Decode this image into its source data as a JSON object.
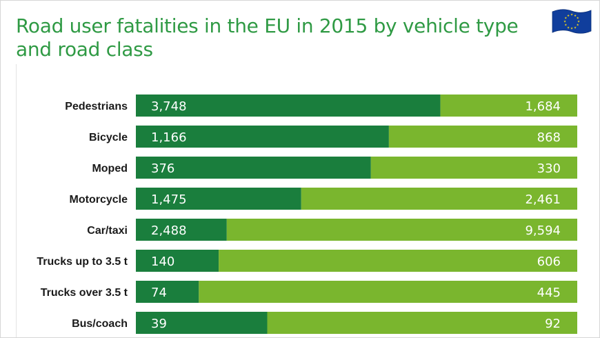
{
  "title": "Road user fatalities in the EU in 2015 by vehicle type and road class",
  "flag": {
    "name": "European Union flag",
    "background": "#103e9c",
    "stars": "#f2d51a"
  },
  "colors": {
    "title": "#2f9a44",
    "dark_green": "#1a7e3d",
    "light_green": "#7ab62e"
  },
  "chart_data": {
    "type": "bar",
    "orientation": "horizontal",
    "stacked": true,
    "normalized": true,
    "title": "Road user fatalities in the EU in 2015 by vehicle type and road class",
    "categories": [
      "Pedestrians",
      "Bicycle",
      "Moped",
      "Motorcycle",
      "Car/taxi",
      "Trucks up to 3.5 t",
      "Trucks over 3.5 t",
      "Bus/coach"
    ],
    "series": [
      {
        "name": "dark",
        "color": "#1a7e3d",
        "values": [
          3748,
          1166,
          376,
          1475,
          2488,
          140,
          74,
          39
        ],
        "labels": [
          "3,748",
          "1,166",
          "376",
          "1,475",
          "2,488",
          "140",
          "74",
          "39"
        ]
      },
      {
        "name": "light",
        "color": "#7ab62e",
        "values": [
          1684,
          868,
          330,
          2461,
          9594,
          606,
          445,
          92
        ],
        "labels": [
          "1,684",
          "868",
          "330",
          "2,461",
          "9,594",
          "606",
          "445",
          "92"
        ]
      }
    ]
  }
}
